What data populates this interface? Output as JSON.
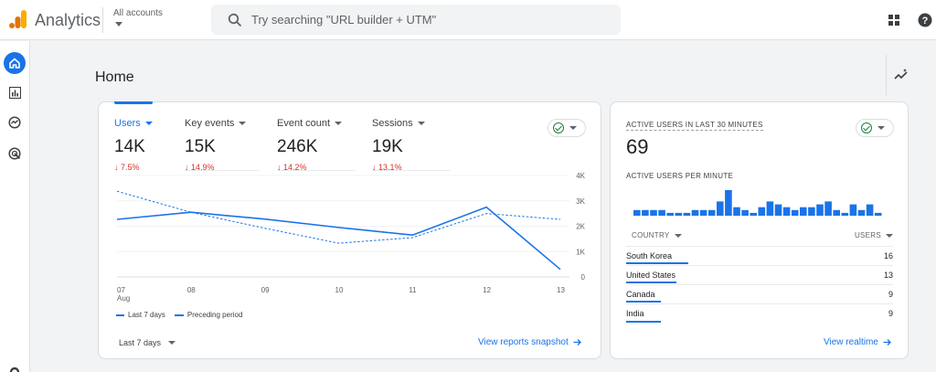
{
  "header": {
    "app_title": "Analytics",
    "account_label": "All accounts",
    "search_placeholder": "Try searching \"URL builder + UTM\""
  },
  "page": {
    "title": "Home"
  },
  "colors": {
    "accent": "#1a73e8",
    "decline": "#d93025",
    "ok": "#188038"
  },
  "metrics": [
    {
      "label": "Users",
      "value": "14K",
      "change": "↓ 7.5%",
      "active": true
    },
    {
      "label": "Key events",
      "value": "15K",
      "change": "↓ 14.9%"
    },
    {
      "label": "Event count",
      "value": "246K",
      "change": "↓ 14.2%"
    },
    {
      "label": "Sessions",
      "value": "19K",
      "change": "↓ 13.1%"
    }
  ],
  "chart_data": {
    "type": "line",
    "x": [
      "07\nAug",
      "08",
      "09",
      "10",
      "11",
      "12",
      "13"
    ],
    "x_tick_labels": [
      "07",
      "08",
      "09",
      "10",
      "11",
      "12",
      "13"
    ],
    "x_sub_label": "Aug",
    "y_ticks": [
      "4K",
      "3K",
      "2K",
      "1K",
      "0"
    ],
    "ylim": [
      0,
      4000
    ],
    "series": [
      {
        "name": "Last 7 days",
        "style": "solid",
        "values": [
          2270,
          2550,
          2280,
          1950,
          1650,
          2750,
          300
        ]
      },
      {
        "name": "Preceding period",
        "style": "dashed",
        "values": [
          3380,
          2550,
          1920,
          1330,
          1550,
          2500,
          2270
        ]
      }
    ],
    "legend": [
      "Last 7 days",
      "Preceding period"
    ]
  },
  "main_card": {
    "date_range": "Last 7 days",
    "view_link": "View reports snapshot"
  },
  "realtime": {
    "title": "ACTIVE USERS IN LAST 30 MINUTES",
    "total": "69",
    "per_minute_label": "ACTIVE USERS PER MINUTE",
    "per_minute_values": [
      2,
      2,
      2,
      2,
      1,
      1,
      1,
      2,
      2,
      2,
      5,
      9,
      3,
      2,
      1,
      3,
      5,
      4,
      3,
      2,
      3,
      3,
      4,
      5,
      2,
      1,
      4,
      2,
      4,
      1
    ],
    "col_country": "COUNTRY",
    "col_users": "USERS",
    "rows": [
      {
        "country": "South Korea",
        "users": "16",
        "value": 16
      },
      {
        "country": "United States",
        "users": "13",
        "value": 13
      },
      {
        "country": "Canada",
        "users": "9",
        "value": 9
      },
      {
        "country": "India",
        "users": "9",
        "value": 9
      }
    ],
    "view_link": "View realtime"
  }
}
